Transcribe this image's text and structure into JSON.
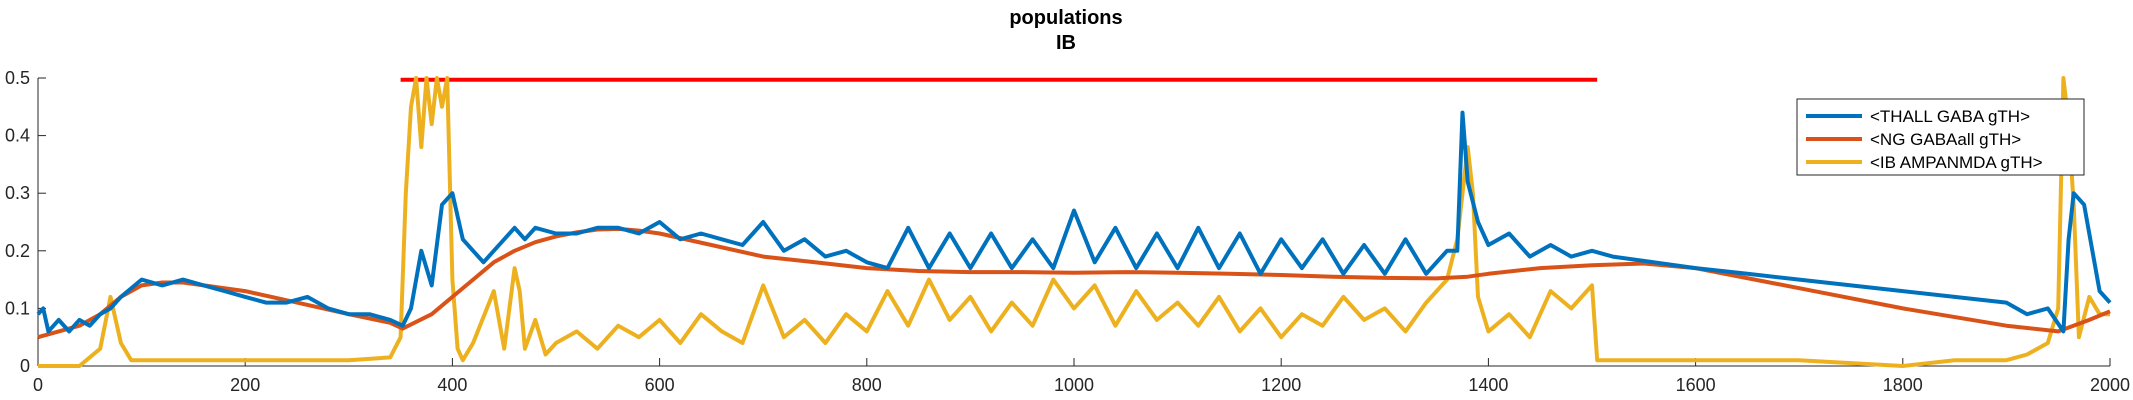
{
  "chart_data": {
    "type": "line",
    "title": "populations",
    "subtitle": "IB",
    "xlabel": "",
    "ylabel": "",
    "xlim": [
      0,
      2000
    ],
    "ylim": [
      0,
      0.5
    ],
    "x_ticks": [
      "0",
      "200",
      "400",
      "600",
      "800",
      "1000",
      "1200",
      "1400",
      "1600",
      "1800",
      "2000"
    ],
    "y_ticks": [
      "0",
      "0.1",
      "0.2",
      "0.3",
      "0.4",
      "0.5"
    ],
    "grid": false,
    "legend_position": "top-right",
    "annotation_line": {
      "x": [
        350,
        1505
      ],
      "y": 0.497,
      "color": "#ff0000"
    },
    "series": [
      {
        "name": "<THALL GABA gTH>",
        "color": "#0072bd",
        "x": [
          0,
          5,
          10,
          20,
          30,
          40,
          50,
          60,
          70,
          80,
          100,
          120,
          140,
          160,
          180,
          200,
          220,
          240,
          260,
          280,
          300,
          320,
          340,
          352,
          360,
          370,
          380,
          390,
          400,
          410,
          420,
          430,
          440,
          450,
          460,
          470,
          480,
          500,
          520,
          540,
          560,
          580,
          600,
          620,
          640,
          660,
          680,
          700,
          720,
          740,
          760,
          780,
          800,
          820,
          840,
          860,
          880,
          900,
          920,
          940,
          960,
          980,
          1000,
          1020,
          1040,
          1060,
          1080,
          1100,
          1120,
          1140,
          1160,
          1180,
          1200,
          1220,
          1240,
          1260,
          1280,
          1300,
          1320,
          1340,
          1360,
          1370,
          1375,
          1380,
          1390,
          1400,
          1420,
          1440,
          1460,
          1480,
          1500,
          1520,
          1560,
          1600,
          1650,
          1700,
          1750,
          1800,
          1850,
          1900,
          1920,
          1940,
          1955,
          1960,
          1965,
          1975,
          1990,
          2000
        ],
        "y": [
          0.09,
          0.1,
          0.06,
          0.08,
          0.06,
          0.08,
          0.07,
          0.09,
          0.1,
          0.12,
          0.15,
          0.14,
          0.15,
          0.14,
          0.13,
          0.12,
          0.11,
          0.11,
          0.12,
          0.1,
          0.09,
          0.09,
          0.08,
          0.07,
          0.1,
          0.2,
          0.14,
          0.28,
          0.3,
          0.22,
          0.2,
          0.18,
          0.2,
          0.22,
          0.24,
          0.22,
          0.24,
          0.23,
          0.23,
          0.24,
          0.24,
          0.23,
          0.25,
          0.22,
          0.23,
          0.22,
          0.21,
          0.25,
          0.2,
          0.22,
          0.19,
          0.2,
          0.18,
          0.17,
          0.24,
          0.17,
          0.23,
          0.17,
          0.23,
          0.17,
          0.22,
          0.17,
          0.27,
          0.18,
          0.24,
          0.17,
          0.23,
          0.17,
          0.24,
          0.17,
          0.23,
          0.16,
          0.22,
          0.17,
          0.22,
          0.16,
          0.21,
          0.16,
          0.22,
          0.16,
          0.2,
          0.2,
          0.44,
          0.32,
          0.25,
          0.21,
          0.23,
          0.19,
          0.21,
          0.19,
          0.2,
          0.19,
          0.18,
          0.17,
          0.16,
          0.15,
          0.14,
          0.13,
          0.12,
          0.11,
          0.09,
          0.1,
          0.06,
          0.22,
          0.3,
          0.28,
          0.13,
          0.11
        ]
      },
      {
        "name": "<NG GABAall gTH>",
        "color": "#d95319",
        "x": [
          0,
          20,
          40,
          60,
          80,
          100,
          120,
          140,
          160,
          200,
          250,
          300,
          340,
          352,
          380,
          400,
          420,
          440,
          460,
          480,
          500,
          520,
          540,
          560,
          580,
          600,
          650,
          700,
          750,
          800,
          850,
          900,
          950,
          1000,
          1050,
          1100,
          1150,
          1200,
          1250,
          1300,
          1350,
          1380,
          1400,
          1450,
          1500,
          1550,
          1600,
          1700,
          1800,
          1900,
          1950,
          1980,
          2000
        ],
        "y": [
          0.05,
          0.06,
          0.07,
          0.09,
          0.12,
          0.14,
          0.145,
          0.145,
          0.14,
          0.13,
          0.11,
          0.09,
          0.075,
          0.065,
          0.09,
          0.12,
          0.15,
          0.18,
          0.2,
          0.215,
          0.225,
          0.232,
          0.237,
          0.238,
          0.235,
          0.23,
          0.21,
          0.19,
          0.18,
          0.17,
          0.165,
          0.163,
          0.163,
          0.162,
          0.163,
          0.162,
          0.16,
          0.158,
          0.155,
          0.153,
          0.152,
          0.155,
          0.16,
          0.17,
          0.175,
          0.178,
          0.17,
          0.135,
          0.1,
          0.07,
          0.06,
          0.08,
          0.095
        ]
      },
      {
        "name": "<IB AMPANMDA gTH>",
        "color": "#edb120",
        "x": [
          0,
          20,
          40,
          60,
          70,
          75,
          80,
          90,
          100,
          150,
          200,
          250,
          300,
          340,
          350,
          355,
          360,
          365,
          370,
          375,
          380,
          385,
          390,
          395,
          400,
          405,
          410,
          420,
          440,
          450,
          460,
          465,
          470,
          480,
          490,
          500,
          520,
          540,
          560,
          580,
          600,
          620,
          640,
          660,
          680,
          700,
          720,
          740,
          760,
          780,
          800,
          820,
          840,
          860,
          880,
          900,
          920,
          940,
          960,
          980,
          1000,
          1020,
          1040,
          1060,
          1080,
          1100,
          1120,
          1140,
          1160,
          1180,
          1200,
          1220,
          1240,
          1260,
          1280,
          1300,
          1320,
          1340,
          1360,
          1370,
          1380,
          1385,
          1390,
          1400,
          1420,
          1440,
          1460,
          1480,
          1500,
          1505,
          1510,
          1550,
          1600,
          1700,
          1800,
          1850,
          1900,
          1920,
          1940,
          1950,
          1955,
          1960,
          1965,
          1970,
          1980,
          1990,
          2000
        ],
        "y": [
          0,
          0,
          0,
          0.03,
          0.12,
          0.08,
          0.04,
          0.01,
          0.01,
          0.01,
          0.01,
          0.01,
          0.01,
          0.015,
          0.05,
          0.3,
          0.45,
          0.5,
          0.38,
          0.5,
          0.42,
          0.5,
          0.45,
          0.5,
          0.15,
          0.03,
          0.01,
          0.04,
          0.13,
          0.03,
          0.17,
          0.13,
          0.03,
          0.08,
          0.02,
          0.04,
          0.06,
          0.03,
          0.07,
          0.05,
          0.08,
          0.04,
          0.09,
          0.06,
          0.04,
          0.14,
          0.05,
          0.08,
          0.04,
          0.09,
          0.06,
          0.13,
          0.07,
          0.15,
          0.08,
          0.12,
          0.06,
          0.11,
          0.07,
          0.15,
          0.1,
          0.14,
          0.07,
          0.13,
          0.08,
          0.11,
          0.07,
          0.12,
          0.06,
          0.1,
          0.05,
          0.09,
          0.07,
          0.12,
          0.08,
          0.1,
          0.06,
          0.11,
          0.15,
          0.22,
          0.38,
          0.3,
          0.12,
          0.06,
          0.09,
          0.05,
          0.13,
          0.1,
          0.14,
          0.01,
          0.01,
          0.01,
          0.01,
          0.01,
          0,
          0.01,
          0.01,
          0.02,
          0.04,
          0.1,
          0.5,
          0.42,
          0.28,
          0.05,
          0.12,
          0.09,
          0.09
        ]
      }
    ]
  }
}
